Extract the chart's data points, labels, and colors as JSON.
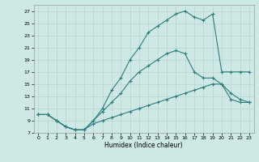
{
  "xlabel": "Humidex (Indice chaleur)",
  "background_color": "#cde8e5",
  "grid_color": "#b8d4d2",
  "line_color": "#2d7d7d",
  "xlim": [
    -0.5,
    23.5
  ],
  "ylim": [
    7,
    28
  ],
  "xticks": [
    0,
    1,
    2,
    3,
    4,
    5,
    6,
    7,
    8,
    9,
    10,
    11,
    12,
    13,
    14,
    15,
    16,
    17,
    18,
    19,
    20,
    21,
    22,
    23
  ],
  "yticks": [
    7,
    9,
    11,
    13,
    15,
    17,
    19,
    21,
    23,
    25,
    27
  ],
  "line_top_x": [
    0,
    1,
    2,
    3,
    4,
    5,
    6,
    7,
    8,
    9,
    10,
    11,
    12,
    13,
    14,
    15,
    16,
    17,
    18,
    19,
    20,
    21,
    22,
    23
  ],
  "line_top_y": [
    10,
    10,
    9,
    8,
    7.5,
    7.5,
    9,
    11,
    14,
    16,
    19,
    21,
    23.5,
    24.5,
    25.5,
    26.5,
    27,
    26,
    25.5,
    26.5,
    17,
    17,
    17,
    17
  ],
  "line_mid_x": [
    0,
    1,
    2,
    3,
    4,
    5,
    6,
    7,
    8,
    9,
    10,
    11,
    12,
    13,
    14,
    15,
    16,
    17,
    18,
    19,
    20,
    21,
    22,
    23
  ],
  "line_mid_y": [
    10,
    10,
    9,
    8,
    7.5,
    7.5,
    9,
    10.5,
    12,
    13.5,
    15.5,
    17,
    18,
    19,
    20,
    20.5,
    20,
    17,
    16,
    16,
    15,
    13.5,
    12.5,
    12
  ],
  "line_bot_x": [
    0,
    1,
    2,
    3,
    4,
    5,
    6,
    7,
    8,
    9,
    10,
    11,
    12,
    13,
    14,
    15,
    16,
    17,
    18,
    19,
    20,
    21,
    22,
    23
  ],
  "line_bot_y": [
    10,
    10,
    9,
    8,
    7.5,
    7.5,
    8.5,
    9,
    9.5,
    10,
    10.5,
    11,
    11.5,
    12,
    12.5,
    13,
    13.5,
    14,
    14.5,
    15,
    15,
    12.5,
    12,
    12
  ]
}
